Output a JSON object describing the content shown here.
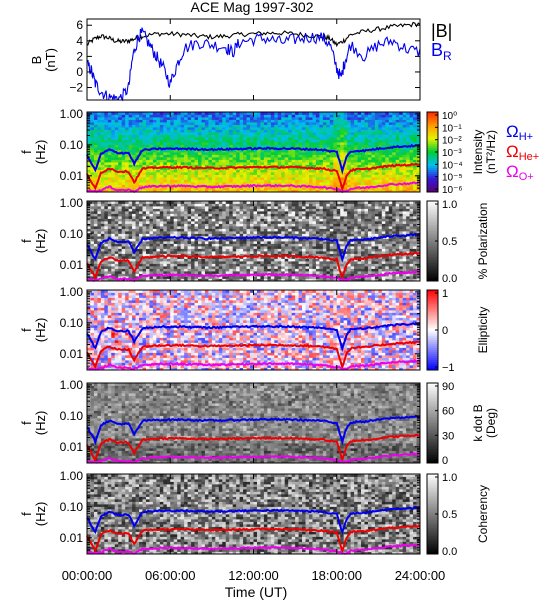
{
  "chart_data": {
    "type": "figure",
    "title": "ACE Mag 1997-302",
    "xlabel": "Time (UT)",
    "x_ticks": [
      "00:00:00",
      "06:00:00",
      "12:00:00",
      "18:00:00",
      "24:00:00"
    ],
    "x_tick_hours": [
      0,
      6,
      12,
      18,
      24
    ],
    "xlim_hours": [
      0,
      24
    ],
    "panels": [
      {
        "type": "line",
        "ylabel": [
          "B",
          "(nT)"
        ],
        "y_ticks": [
          -2,
          0,
          2,
          4,
          6
        ],
        "ylim": [
          -3.6,
          6.8
        ],
        "legend": [
          "|B|",
          "B",
          "R"
        ],
        "series": [
          {
            "name": "|B|",
            "color": "#000000",
            "t": [
              0,
              0.5,
              1,
              1.5,
              2,
              2.5,
              3,
              3.5,
              4,
              5,
              6,
              7,
              8,
              9,
              10,
              11,
              12,
              13,
              14,
              15,
              16,
              17,
              17.5,
              18,
              18.5,
              19,
              20,
              21,
              22,
              23,
              24
            ],
            "v": [
              3.5,
              4.2,
              4.6,
              4.4,
              4.0,
              3.9,
              4.0,
              4.3,
              4.6,
              4.9,
              4.9,
              4.8,
              4.6,
              4.5,
              4.6,
              4.8,
              4.9,
              5.0,
              5.0,
              4.9,
              4.7,
              4.5,
              4.3,
              3.5,
              4.0,
              4.8,
              5.2,
              5.5,
              5.8,
              6.0,
              6.2
            ]
          },
          {
            "name": "B_R",
            "color": "#0000ee",
            "t": [
              0,
              0.3,
              0.6,
              1,
              1.5,
              2,
              2.5,
              3,
              3.3,
              3.7,
              4,
              4.5,
              5,
              5.5,
              6,
              6.5,
              7,
              8,
              9,
              10,
              10.5,
              11,
              12,
              13,
              14,
              15,
              16,
              17,
              17.5,
              18,
              18.3,
              18.6,
              19,
              20,
              21,
              22,
              23,
              24
            ],
            "v": [
              1.0,
              0.2,
              -1.5,
              -2.5,
              -3.2,
              -3.4,
              -3.3,
              -2.0,
              2.0,
              4.5,
              5.0,
              3.5,
              2.0,
              0.5,
              -1.5,
              1.0,
              3.0,
              3.8,
              3.5,
              3.2,
              2.5,
              3.8,
              4.2,
              4.3,
              3.8,
              4.2,
              4.5,
              4.4,
              3.5,
              0.5,
              -0.8,
              1.5,
              3.5,
              2.0,
              3.5,
              4.0,
              3.0,
              2.5
            ]
          }
        ]
      },
      {
        "type": "heatmap",
        "ylabel": [
          "f",
          "(Hz)"
        ],
        "y_ticks": [
          "1.00",
          "0.10",
          "0.01"
        ],
        "ylim_hz": [
          0.003,
          1.15
        ],
        "y_scale": "log",
        "palette": "rainbow",
        "colorbar": {
          "label": [
            "Intensity",
            "(nT²/Hz)"
          ],
          "ticks": [
            "10⁰",
            "10⁻¹",
            "10⁻²",
            "10⁻³",
            "10⁻⁴",
            "10⁻⁵",
            "10⁻⁶"
          ]
        },
        "side_labels": [
          {
            "text": "Ω",
            "sub": "H+",
            "color": "#0000ee"
          },
          {
            "text": "Ω",
            "sub": "He+",
            "color": "#ee0000"
          },
          {
            "text": "Ω",
            "sub": "O+",
            "color": "#ee00ee"
          }
        ]
      },
      {
        "type": "heatmap",
        "ylabel": [
          "f",
          "(Hz)"
        ],
        "y_ticks": [
          "1.00",
          "0.10",
          "0.01"
        ],
        "ylim_hz": [
          0.003,
          1.15
        ],
        "y_scale": "log",
        "palette": "gray",
        "colorbar": {
          "label": [
            "% Polarization"
          ],
          "ticks": [
            "1.0",
            "0.5",
            "0.0"
          ]
        }
      },
      {
        "type": "heatmap",
        "ylabel": [
          "f",
          "(Hz)"
        ],
        "y_ticks": [
          "1.00",
          "0.10",
          "0.01"
        ],
        "ylim_hz": [
          0.003,
          1.15
        ],
        "y_scale": "log",
        "palette": "bwr",
        "colorbar": {
          "label": [
            "Ellipticity"
          ],
          "ticks": [
            "1",
            "0",
            "−1"
          ]
        }
      },
      {
        "type": "heatmap",
        "ylabel": [
          "f",
          "(Hz)"
        ],
        "y_ticks": [
          "1.00",
          "0.10",
          "0.01"
        ],
        "ylim_hz": [
          0.003,
          1.15
        ],
        "y_scale": "log",
        "palette": "gray",
        "colorbar": {
          "label": [
            "k dot B",
            "(Deg)"
          ],
          "ticks": [
            "90",
            "60",
            "30",
            "0"
          ]
        }
      },
      {
        "type": "heatmap",
        "ylabel": [
          "f",
          "(Hz)"
        ],
        "y_ticks": [
          "1.00",
          "0.10",
          "0.01"
        ],
        "ylim_hz": [
          0.003,
          1.15
        ],
        "y_scale": "log",
        "palette": "gray",
        "colorbar": {
          "label": [
            "Coherency"
          ],
          "ticks": [
            "1.0",
            "0.5",
            "0.0"
          ]
        }
      }
    ],
    "gyrofrequency_curves": {
      "t": [
        0,
        0.6,
        1.0,
        1.6,
        2.2,
        3.0,
        3.4,
        4.0,
        5,
        6,
        7,
        8,
        9,
        10,
        11,
        12,
        13,
        14,
        15,
        16,
        17,
        17.5,
        18,
        18.4,
        18.7,
        19,
        19.5,
        20,
        21,
        22,
        23,
        24
      ],
      "series": [
        {
          "name": "ΩH+",
          "color": "#0000ee",
          "hz": [
            0.045,
            0.015,
            0.05,
            0.07,
            0.055,
            0.055,
            0.025,
            0.068,
            0.074,
            0.075,
            0.075,
            0.072,
            0.071,
            0.072,
            0.074,
            0.076,
            0.077,
            0.076,
            0.075,
            0.072,
            0.069,
            0.062,
            0.06,
            0.015,
            0.04,
            0.06,
            0.065,
            0.065,
            0.075,
            0.085,
            0.09,
            0.095
          ]
        },
        {
          "name": "ΩHe+",
          "color": "#ee0000",
          "hz": [
            0.0112,
            0.0038,
            0.0125,
            0.0175,
            0.0138,
            0.0138,
            0.0062,
            0.017,
            0.0185,
            0.0188,
            0.0188,
            0.018,
            0.0178,
            0.018,
            0.0185,
            0.019,
            0.0192,
            0.019,
            0.0188,
            0.018,
            0.0172,
            0.0155,
            0.015,
            0.0038,
            0.01,
            0.015,
            0.0162,
            0.0162,
            0.0188,
            0.0212,
            0.0225,
            0.0238
          ]
        },
        {
          "name": "ΩO+",
          "color": "#ee00ee",
          "hz": [
            0.0034,
            0.0032,
            0.0034,
            0.0044,
            0.0035,
            0.0035,
            0.0032,
            0.0043,
            0.0046,
            0.0047,
            0.0047,
            0.0045,
            0.0044,
            0.0045,
            0.0046,
            0.0048,
            0.0048,
            0.0048,
            0.0047,
            0.0045,
            0.0043,
            0.0039,
            0.0038,
            0.0032,
            0.0032,
            0.0038,
            0.0041,
            0.0041,
            0.0047,
            0.0053,
            0.0056,
            0.006
          ]
        }
      ]
    }
  }
}
